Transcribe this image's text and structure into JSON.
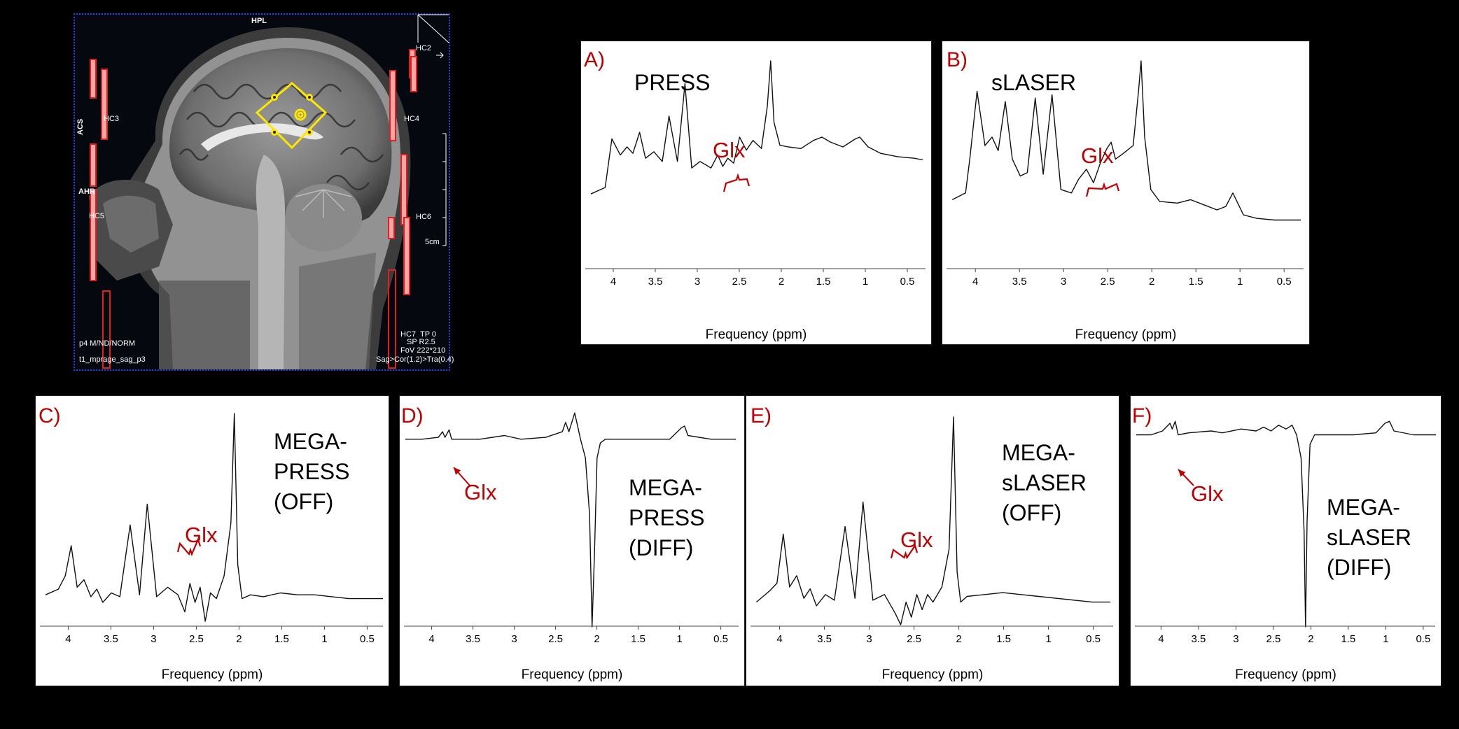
{
  "mri": {
    "labels": {
      "hpl": "HPL",
      "hc2": "HC2",
      "hc3": "HC3",
      "hc4": "HC4",
      "acs": "ACS",
      "ahr": "AHR",
      "hc5": "HC5",
      "hc6": "HC6",
      "hc7": "HC7",
      "scale": "5cm",
      "bottom_left_1": "p4 M/ND/NORM",
      "bottom_left_2": "t1_mprage_sag_p3",
      "tp": "TP 0",
      "sp": "SP R2.5",
      "fov": "FoV 222*210",
      "orient": "Sag>Cor(1.2)>Tra(0.4)"
    },
    "colors": {
      "voxel": "#ffe600",
      "coil": "#e02020",
      "border": "#2b3fd8"
    }
  },
  "common": {
    "xlabel": "Frequency (ppm)",
    "xticks": [
      4,
      3.5,
      3,
      2.5,
      2,
      1.5,
      1,
      0.5
    ],
    "xtick_labels": [
      "4",
      "3.5",
      "3",
      "2.5",
      "2",
      "1.5",
      "1",
      "0.5"
    ],
    "label_color": "#c00000"
  },
  "panels": [
    {
      "letter": "A)",
      "sequence": "PRESS",
      "glx": "Glx"
    },
    {
      "letter": "B)",
      "sequence": "sLASER",
      "glx": "Glx"
    },
    {
      "letter": "C)",
      "sequence": "MEGA-\nPRESS\n(OFF)",
      "glx": "Glx"
    },
    {
      "letter": "D)",
      "sequence": "MEGA-\nPRESS\n(DIFF)",
      "glx": "Glx"
    },
    {
      "letter": "E)",
      "sequence": "MEGA-\nsLASER\n(OFF)",
      "glx": "Glx"
    },
    {
      "letter": "F)",
      "sequence": "MEGA-\nsLASER\n(DIFF)",
      "glx": "Glx"
    }
  ],
  "chart_data": [
    {
      "type": "line",
      "panel": "A)",
      "title": "PRESS",
      "xlabel": "Frequency (ppm)",
      "ylabel": "",
      "xlim": [
        4.2,
        0.2
      ],
      "ylim": [
        0,
        1
      ],
      "reversed_x": true,
      "grid": false,
      "series": [
        {
          "x": [
            4.15,
            3.98,
            3.9,
            3.8,
            3.72,
            3.65,
            3.57,
            3.5,
            3.4,
            3.3,
            3.22,
            3.12,
            3.03,
            2.95,
            2.85,
            2.72,
            2.64,
            2.58,
            2.52,
            2.45,
            2.38,
            2.3,
            2.22,
            2.12,
            2.05,
            2.01,
            1.97,
            1.9,
            1.8,
            1.65,
            1.5,
            1.4,
            1.3,
            1.15,
            1.0,
            0.95,
            0.85,
            0.7,
            0.5,
            0.3,
            0.2
          ],
          "y": [
            0.18,
            0.22,
            0.52,
            0.42,
            0.47,
            0.43,
            0.56,
            0.4,
            0.44,
            0.38,
            0.66,
            0.38,
            0.86,
            0.34,
            0.38,
            0.34,
            0.42,
            0.35,
            0.4,
            0.37,
            0.53,
            0.45,
            0.51,
            0.46,
            0.72,
            1.0,
            0.62,
            0.48,
            0.47,
            0.46,
            0.51,
            0.53,
            0.5,
            0.47,
            0.52,
            0.53,
            0.47,
            0.43,
            0.41,
            0.4,
            0.39
          ]
        }
      ]
    },
    {
      "type": "line",
      "panel": "B)",
      "title": "sLASER",
      "xlabel": "Frequency (ppm)",
      "ylabel": "",
      "xlim": [
        4.2,
        0.2
      ],
      "ylim": [
        0,
        1
      ],
      "reversed_x": true,
      "grid": false,
      "series": [
        {
          "x": [
            4.15,
            4.0,
            3.95,
            3.87,
            3.78,
            3.7,
            3.63,
            3.55,
            3.47,
            3.38,
            3.3,
            3.21,
            3.12,
            3.02,
            2.92,
            2.8,
            2.72,
            2.63,
            2.55,
            2.47,
            2.4,
            2.35,
            2.3,
            2.22,
            2.1,
            2.04,
            2.01,
            1.97,
            1.9,
            1.8,
            1.6,
            1.45,
            1.3,
            1.15,
            1.05,
            0.97,
            0.85,
            0.7,
            0.5,
            0.3,
            0.2
          ],
          "y": [
            0.18,
            0.22,
            0.43,
            0.82,
            0.5,
            0.55,
            0.47,
            0.76,
            0.42,
            0.32,
            0.34,
            0.78,
            0.33,
            0.8,
            0.24,
            0.22,
            0.3,
            0.36,
            0.28,
            0.4,
            0.48,
            0.52,
            0.42,
            0.45,
            0.5,
            0.82,
            1.0,
            0.55,
            0.24,
            0.17,
            0.16,
            0.18,
            0.15,
            0.12,
            0.14,
            0.22,
            0.09,
            0.07,
            0.06,
            0.06,
            0.06
          ]
        }
      ]
    },
    {
      "type": "line",
      "panel": "C)",
      "title": "MEGA-PRESS (OFF)",
      "xlabel": "Frequency (ppm)",
      "ylabel": "",
      "xlim": [
        4.2,
        0.2
      ],
      "ylim": [
        0,
        1
      ],
      "reversed_x": true,
      "grid": false,
      "series": [
        {
          "x": [
            4.15,
            4.0,
            3.92,
            3.85,
            3.78,
            3.7,
            3.62,
            3.55,
            3.48,
            3.38,
            3.28,
            3.16,
            3.05,
            2.96,
            2.85,
            2.72,
            2.6,
            2.52,
            2.46,
            2.4,
            2.34,
            2.28,
            2.22,
            2.15,
            2.06,
            1.98,
            1.94,
            1.9,
            1.85,
            1.75,
            1.6,
            1.4,
            1.2,
            1.0,
            0.8,
            0.6,
            0.4,
            0.2
          ],
          "y": [
            0.04,
            0.07,
            0.14,
            0.3,
            0.08,
            0.12,
            0.03,
            0.07,
            0.0,
            0.05,
            0.03,
            0.41,
            0.04,
            0.52,
            0.03,
            0.08,
            0.04,
            -0.05,
            0.1,
            0.0,
            0.08,
            -0.1,
            0.05,
            0.02,
            0.14,
            0.42,
            1.0,
            0.2,
            0.02,
            0.04,
            0.03,
            0.05,
            0.04,
            0.04,
            0.03,
            0.02,
            0.02,
            0.02
          ]
        }
      ]
    },
    {
      "type": "line",
      "panel": "D)",
      "title": "MEGA-PRESS (DIFF)",
      "xlabel": "Frequency (ppm)",
      "ylabel": "",
      "xlim": [
        4.2,
        0.2
      ],
      "ylim": [
        -1,
        0.1
      ],
      "reversed_x": true,
      "grid": false,
      "series": [
        {
          "x": [
            4.2,
            4.0,
            3.8,
            3.75,
            3.72,
            3.67,
            3.64,
            3.55,
            3.3,
            3.0,
            2.8,
            2.5,
            2.3,
            2.26,
            2.22,
            2.15,
            2.08,
            2.02,
            1.97,
            1.94,
            1.91,
            1.88,
            1.84,
            1.78,
            1.6,
            1.3,
            1.0,
            0.86,
            0.82,
            0.78,
            0.5,
            0.2
          ],
          "y": [
            0.0,
            0.0,
            0.01,
            0.04,
            0.01,
            0.05,
            0.0,
            0.0,
            0.0,
            0.02,
            0.0,
            0.01,
            0.04,
            0.09,
            0.04,
            0.14,
            0.0,
            -0.1,
            -0.4,
            -1.0,
            -0.6,
            -0.1,
            -0.02,
            0.0,
            0.0,
            0.0,
            0.0,
            0.06,
            0.07,
            0.02,
            0.0,
            0.0
          ]
        }
      ]
    },
    {
      "type": "line",
      "panel": "E)",
      "title": "MEGA-sLASER (OFF)",
      "xlabel": "Frequency (ppm)",
      "ylabel": "",
      "xlim": [
        4.2,
        0.2
      ],
      "ylim": [
        0,
        1
      ],
      "reversed_x": true,
      "grid": false,
      "series": [
        {
          "x": [
            4.15,
            4.0,
            3.92,
            3.85,
            3.78,
            3.7,
            3.62,
            3.55,
            3.48,
            3.38,
            3.28,
            3.16,
            3.05,
            2.96,
            2.85,
            2.72,
            2.6,
            2.54,
            2.48,
            2.42,
            2.36,
            2.3,
            2.24,
            2.18,
            2.08,
            2.0,
            1.95,
            1.91,
            1.87,
            1.8,
            1.6,
            1.4,
            1.2,
            1.0,
            0.8,
            0.6,
            0.4,
            0.2
          ],
          "y": [
            0.02,
            0.08,
            0.12,
            0.38,
            0.1,
            0.16,
            0.04,
            0.09,
            0.0,
            0.06,
            0.03,
            0.42,
            0.04,
            0.55,
            0.03,
            0.06,
            -0.04,
            -0.1,
            0.02,
            -0.06,
            0.06,
            -0.02,
            0.06,
            0.02,
            0.1,
            0.3,
            1.0,
            0.18,
            0.02,
            0.05,
            0.06,
            0.07,
            0.06,
            0.05,
            0.04,
            0.03,
            0.02,
            0.02
          ]
        }
      ]
    },
    {
      "type": "line",
      "panel": "F)",
      "title": "MEGA-sLASER (DIFF)",
      "xlabel": "Frequency (ppm)",
      "ylabel": "",
      "xlim": [
        4.2,
        0.2
      ],
      "ylim": [
        -1,
        0.1
      ],
      "reversed_x": true,
      "grid": false,
      "series": [
        {
          "x": [
            4.2,
            4.0,
            3.85,
            3.75,
            3.72,
            3.68,
            3.64,
            3.5,
            3.2,
            3.05,
            2.8,
            2.6,
            2.5,
            2.4,
            2.3,
            2.2,
            2.12,
            2.06,
            2.0,
            1.96,
            1.94,
            1.92,
            1.88,
            1.82,
            1.6,
            1.3,
            1.0,
            0.88,
            0.82,
            0.76,
            0.5,
            0.2
          ],
          "y": [
            0.0,
            0.0,
            0.02,
            0.06,
            0.03,
            0.07,
            0.0,
            0.01,
            0.02,
            0.01,
            0.03,
            0.02,
            0.04,
            0.02,
            0.05,
            0.03,
            0.05,
            0.0,
            -0.12,
            -0.5,
            -1.0,
            -0.45,
            -0.05,
            0.0,
            0.0,
            0.0,
            0.01,
            0.06,
            0.07,
            0.02,
            0.0,
            0.0
          ]
        }
      ]
    }
  ]
}
